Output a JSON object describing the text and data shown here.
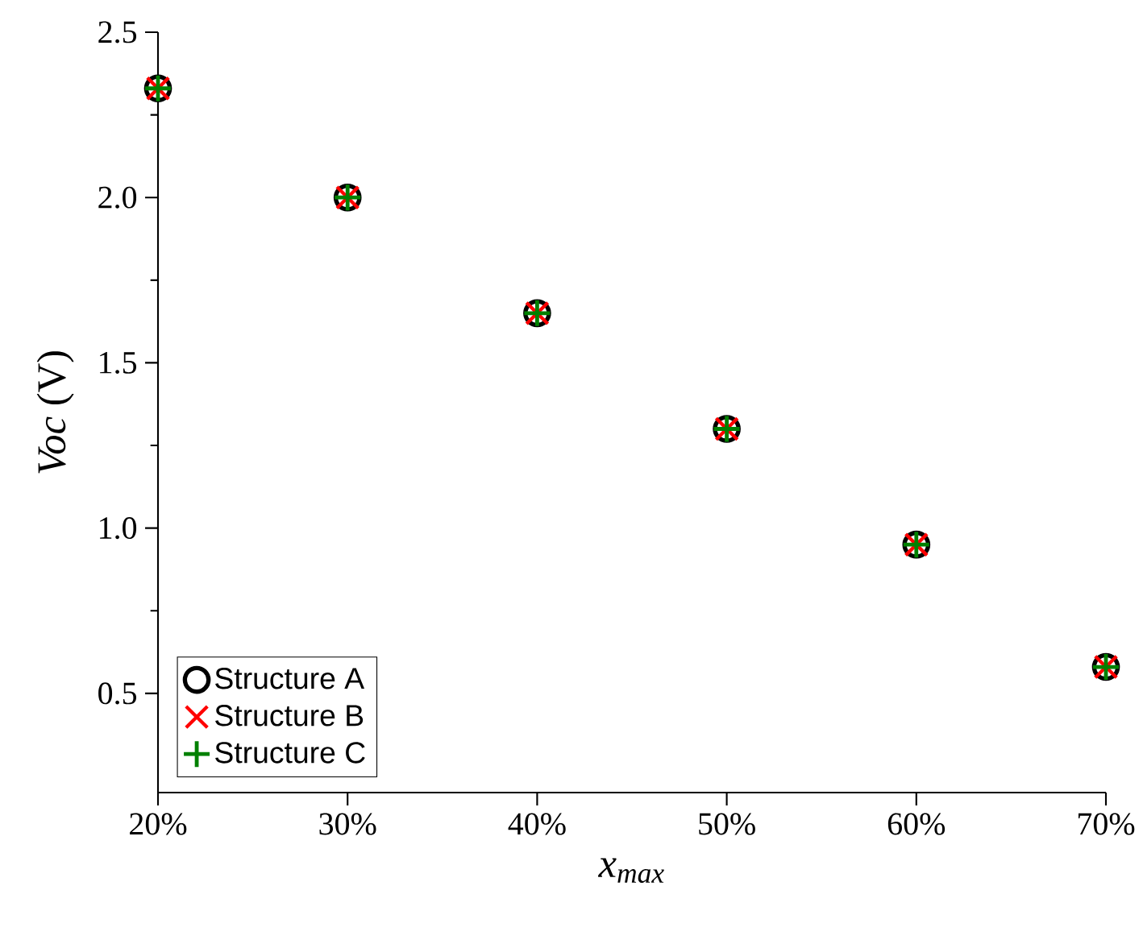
{
  "chart_data": {
    "type": "scatter",
    "xlabel": "*x$_{max}$*",
    "ylabel": "*Voc* (V)",
    "x": [
      20,
      30,
      40,
      50,
      60,
      70
    ],
    "series": [
      {
        "name": "Structure A",
        "color": "#000000",
        "marker": "circle",
        "values": [
          2.33,
          2.0,
          1.65,
          1.3,
          0.95,
          0.58
        ]
      },
      {
        "name": "Structure B",
        "color": "#ff0000",
        "marker": "cross",
        "values": [
          2.33,
          2.0,
          1.65,
          1.3,
          0.95,
          0.58
        ]
      },
      {
        "name": "Structure C",
        "color": "#008000",
        "marker": "plus",
        "values": [
          2.33,
          2.0,
          1.65,
          1.3,
          0.95,
          0.58
        ]
      }
    ],
    "xlim": [
      20,
      70
    ],
    "ylim": [
      0.2,
      2.5
    ],
    "xticks": [
      {
        "value": 20,
        "label": "20%"
      },
      {
        "value": 30,
        "label": "30%"
      },
      {
        "value": 40,
        "label": "40%"
      },
      {
        "value": 50,
        "label": "50%"
      },
      {
        "value": 60,
        "label": "60%"
      },
      {
        "value": 70,
        "label": "70%"
      }
    ],
    "yticks": [
      {
        "value": 0.5,
        "label": "0.5"
      },
      {
        "value": 1.0,
        "label": "1.0"
      },
      {
        "value": 1.5,
        "label": "1.5"
      },
      {
        "value": 2.0,
        "label": "2.0"
      },
      {
        "value": 2.5,
        "label": "2.5"
      }
    ],
    "legend": "bottom left",
    "grid": false
  }
}
